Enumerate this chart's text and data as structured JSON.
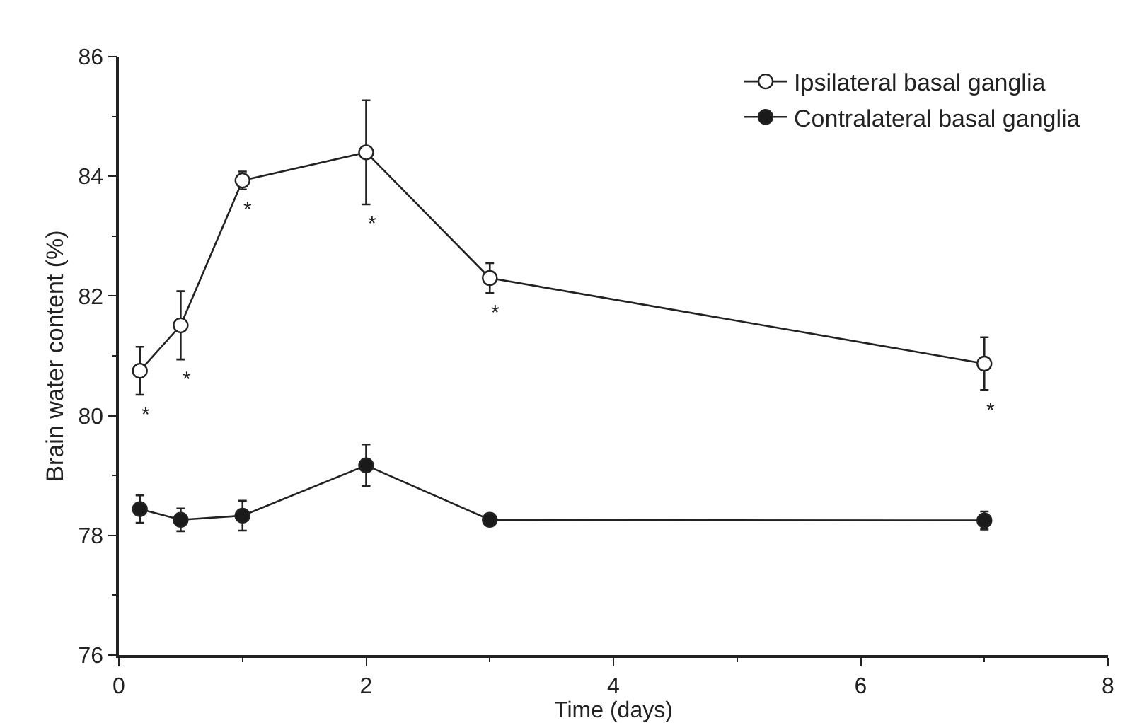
{
  "chart_data": {
    "type": "line",
    "xlabel": "Time (days)",
    "ylabel": "Brain water content (%)",
    "xlim": [
      0,
      8
    ],
    "xticks": [
      0,
      2,
      4,
      6,
      8
    ],
    "ylim": [
      76,
      86
    ],
    "yticks": [
      76,
      78,
      80,
      82,
      84,
      86
    ],
    "legend": "top right",
    "marker": "circle",
    "line_style": "solid",
    "series": [
      {
        "name": "Ipsilateral basal ganglia",
        "color": "#ffffff",
        "x": [
          0.17,
          0.5,
          1,
          2,
          3,
          7
        ],
        "values": [
          80.75,
          81.51,
          83.93,
          84.4,
          82.3,
          80.87
        ],
        "errors": [
          0.4,
          0.57,
          0.15,
          0.87,
          0.25,
          0.44
        ]
      },
      {
        "name": "Contralateral basal ganglia",
        "color": "#1a1a1a",
        "x": [
          0.17,
          0.5,
          1,
          2,
          3,
          7
        ],
        "values": [
          78.44,
          78.26,
          78.33,
          79.17,
          78.26,
          78.25
        ],
        "errors": [
          0.23,
          0.19,
          0.25,
          0.35,
          null,
          0.15
        ]
      }
    ],
    "annotations": [
      {
        "text": "*",
        "x": 0.17,
        "y": 80.75
      },
      {
        "text": "*",
        "x": 0.5,
        "y": 81.51
      },
      {
        "text": "*",
        "x": 1,
        "y": 83.93
      },
      {
        "text": "*",
        "x": 2,
        "y": 84.4
      },
      {
        "text": "*",
        "x": 3,
        "y": 82.3
      },
      {
        "text": "*",
        "x": 7,
        "y": 80.87
      }
    ]
  }
}
